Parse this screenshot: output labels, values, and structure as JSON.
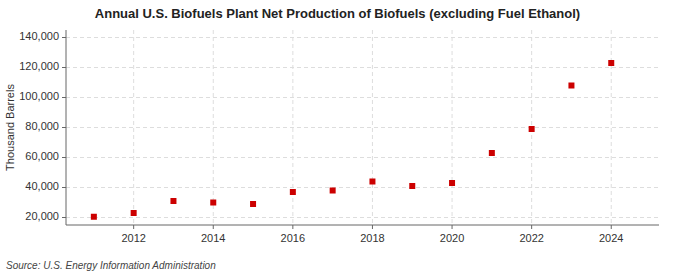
{
  "chart_data": {
    "type": "scatter",
    "title": "Annual U.S. Biofuels Plant Net Production of Biofuels (excluding Fuel Ethanol)",
    "y_label": "Thousand Barrels",
    "source": "Source: U.S. Energy Information Administration",
    "x": [
      2011,
      2012,
      2013,
      2014,
      2015,
      2016,
      2017,
      2018,
      2019,
      2020,
      2021,
      2022,
      2023,
      2024
    ],
    "values": [
      20500,
      23000,
      31000,
      30000,
      29000,
      37000,
      38000,
      44000,
      41000,
      43000,
      63000,
      79000,
      108000,
      123000
    ],
    "color": "#cc0000",
    "marker": "square",
    "xlim": [
      2010.3,
      2025.2
    ],
    "xticks": [
      2012,
      2014,
      2016,
      2018,
      2020,
      2022,
      2024
    ],
    "ylim": [
      15000,
      145000
    ],
    "yticks": [
      {
        "value": 20000,
        "label": "20,000"
      },
      {
        "value": 40000,
        "label": "40,000"
      },
      {
        "value": 60000,
        "label": "60,000"
      },
      {
        "value": 80000,
        "label": "80,000"
      },
      {
        "value": 100000,
        "label": "100,000"
      },
      {
        "value": 120000,
        "label": "120,000"
      },
      {
        "value": 140000,
        "label": "140,000"
      }
    ],
    "grid": true
  }
}
